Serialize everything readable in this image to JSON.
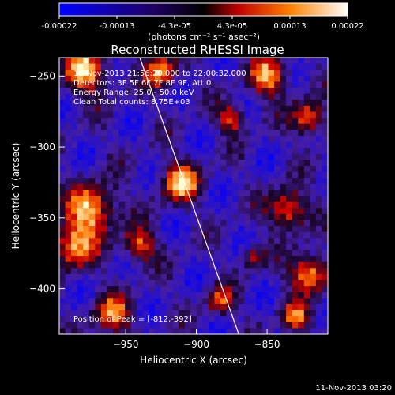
{
  "chart_data": {
    "type": "heatmap",
    "title": "Reconstructed RHESSI Image",
    "xlabel": "Heliocentric X (arcsec)",
    "ylabel": "Heliocentric Y (arcsec)",
    "xlim": [
      -997,
      -807
    ],
    "ylim": [
      -432,
      -237
    ],
    "x_ticks": [
      -950,
      -900,
      -850
    ],
    "y_ticks": [
      -250,
      -300,
      -350,
      -400
    ],
    "colorbar": {
      "range": [
        -0.00022,
        0.00022
      ],
      "ticks": [
        "-0.00022",
        "-0.00013",
        "-4.3e-05",
        "4.3e-05",
        "0.00013",
        "0.00022"
      ],
      "unit_label": "(photons cm⁻² s⁻¹ asec⁻²)",
      "colors": [
        "#0000ff",
        "#000000",
        "#ff0000",
        "#ffa000",
        "#ffffff"
      ]
    },
    "annotations": {
      "time_range": "10-Nov-2013 21:56:20.000 to 22:00:32.000",
      "detectors": "Detectors: 3F 5F 6F 7F 8F 9F, Att 0",
      "energy": "Energy Range: 25.0 - 50.0 keV",
      "clean": "Clean    Total counts: 8.75E+03",
      "peak": "Position of Peak = [-812,-392]"
    },
    "limb_line": {
      "x": [
        -940,
        -870
      ],
      "y": [
        -237,
        -432
      ]
    },
    "peak_position": [
      -812,
      -392
    ],
    "timestamp": "11-Nov-2013 03:20"
  }
}
